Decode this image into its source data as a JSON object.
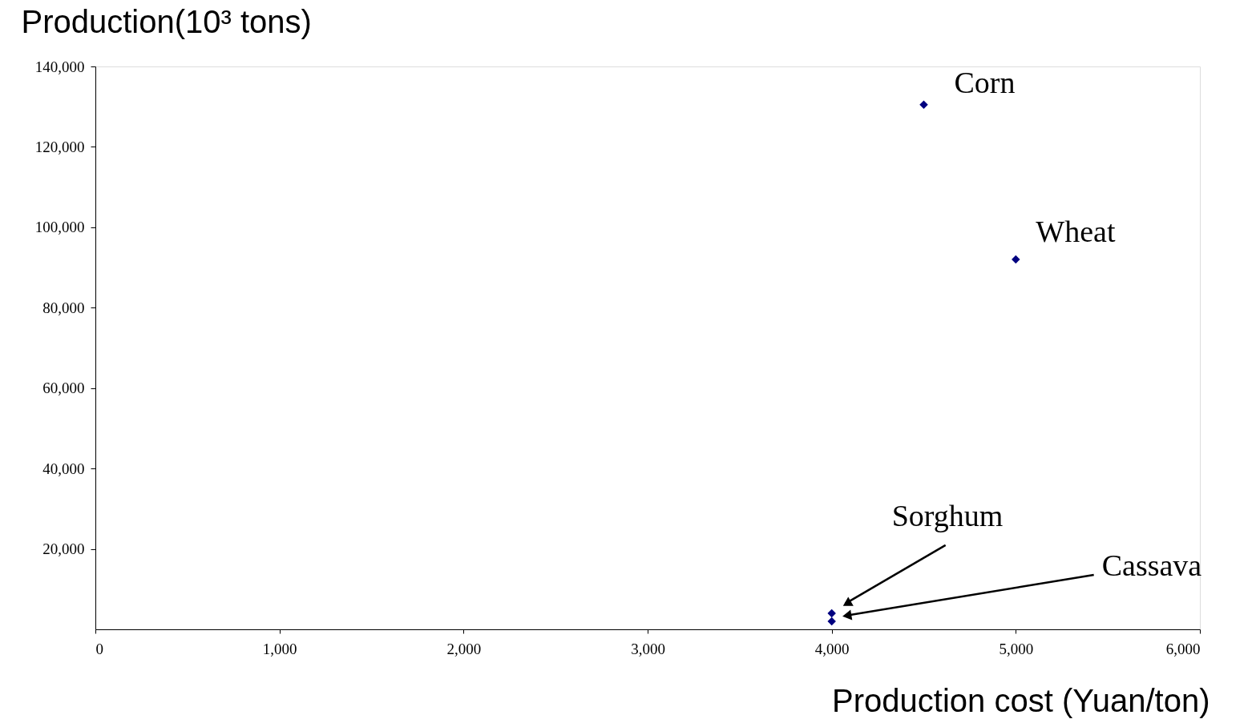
{
  "chart_data": {
    "type": "scatter",
    "xlabel": "Production cost (Yuan/ton)",
    "ylabel": "Production(10³ tons)",
    "x": [
      4500,
      5000,
      4000,
      4000
    ],
    "series": [
      {
        "color": "#000080",
        "values": [
          130500,
          92000,
          4000,
          2000
        ]
      }
    ],
    "marker": "diamond",
    "xlim": [
      0,
      6000
    ],
    "xticks": [
      0,
      {
        "value": 1000,
        "label": "1,000"
      },
      {
        "value": 2000,
        "label": "2,000"
      },
      {
        "value": 3000,
        "label": "3,000"
      },
      {
        "value": 4000,
        "label": "4,000"
      },
      {
        "value": 5000,
        "label": "5,000"
      },
      {
        "value": 6000,
        "label": "6,000"
      }
    ],
    "ylim": [
      0,
      140000
    ],
    "yticks": [
      {
        "value": 20000,
        "label": "20,000"
      },
      {
        "value": 40000,
        "label": "40,000"
      },
      {
        "value": 60000,
        "label": "60,000"
      },
      {
        "value": 80000,
        "label": "80,000"
      },
      {
        "value": 100000,
        "label": "100,000"
      },
      {
        "value": 120000,
        "label": "120,000"
      },
      {
        "value": 140000,
        "label": "140,000"
      }
    ],
    "grid": false,
    "annotations": [
      {
        "text": "Corn",
        "x": 4500,
        "y": 130500
      },
      {
        "text": "Wheat",
        "x": 5000,
        "y": 92000
      },
      "Sorghum",
      "Cassava"
    ]
  }
}
